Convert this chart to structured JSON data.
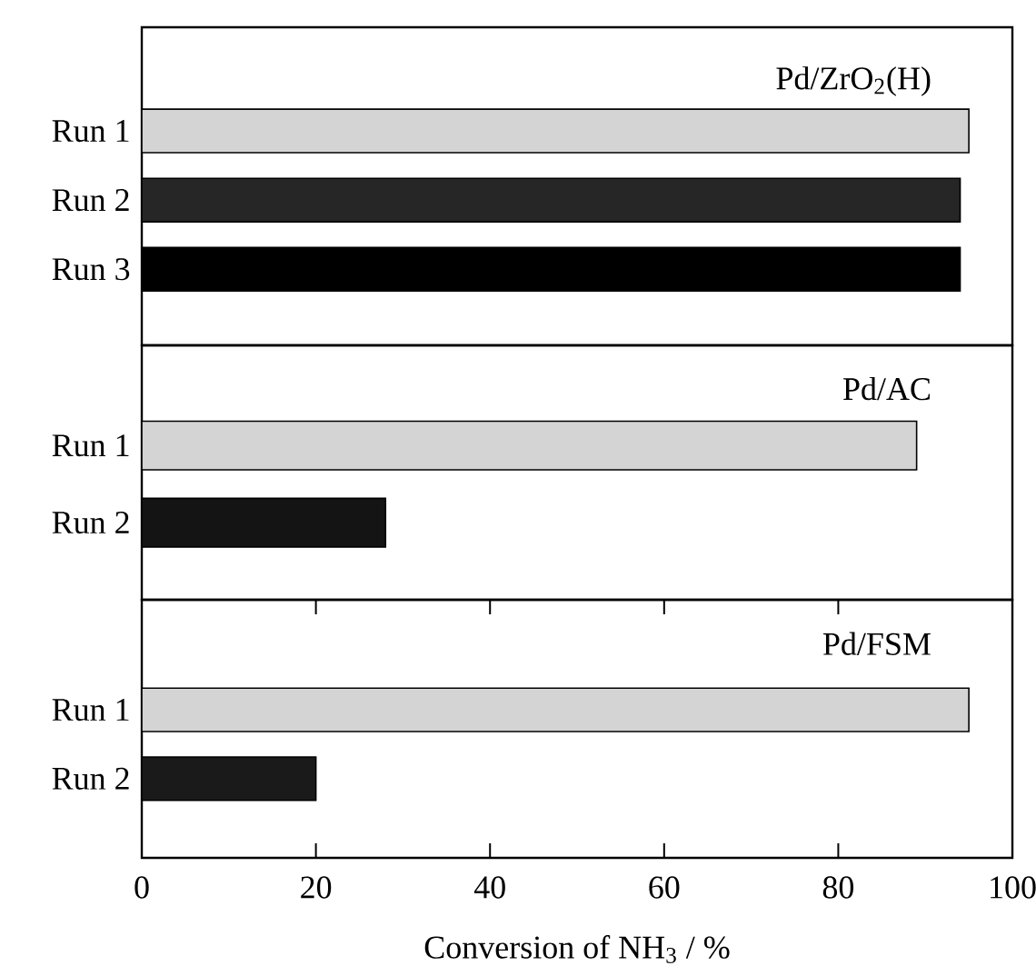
{
  "chart_data": [
    {
      "type": "bar",
      "orientation": "horizontal",
      "title": "Pd/ZrO$_{2}$(H)",
      "categories": [
        "Run 1",
        "Run 2",
        "Run 3"
      ],
      "values": [
        95,
        94,
        94
      ],
      "colors": [
        "#d4d4d4",
        "#262626",
        "#000000"
      ],
      "xlim": [
        0,
        100
      ],
      "xticks": [
        0,
        20,
        40,
        60,
        80,
        100
      ],
      "tick_labels": "y"
    },
    {
      "type": "bar",
      "orientation": "horizontal",
      "title": "Pd/AC",
      "categories": [
        "Run 1",
        "Run 2"
      ],
      "values": [
        89,
        28
      ],
      "colors": [
        "#d4d4d4",
        "#141414"
      ],
      "xlim": [
        0,
        100
      ],
      "xticks": [
        0,
        20,
        40,
        60,
        80,
        100
      ],
      "tick_labels": "y"
    },
    {
      "type": "bar",
      "orientation": "horizontal",
      "title": "Pd/FSM",
      "xlabel": "Conversion of NH$_{3}$ / %",
      "categories": [
        "Run 1",
        "Run 2"
      ],
      "values": [
        95,
        20
      ],
      "colors": [
        "#d4d4d4",
        "#1a1a1a"
      ],
      "xlim": [
        0,
        100
      ],
      "xticks": [
        0,
        20,
        40,
        60,
        80,
        100
      ]
    }
  ]
}
